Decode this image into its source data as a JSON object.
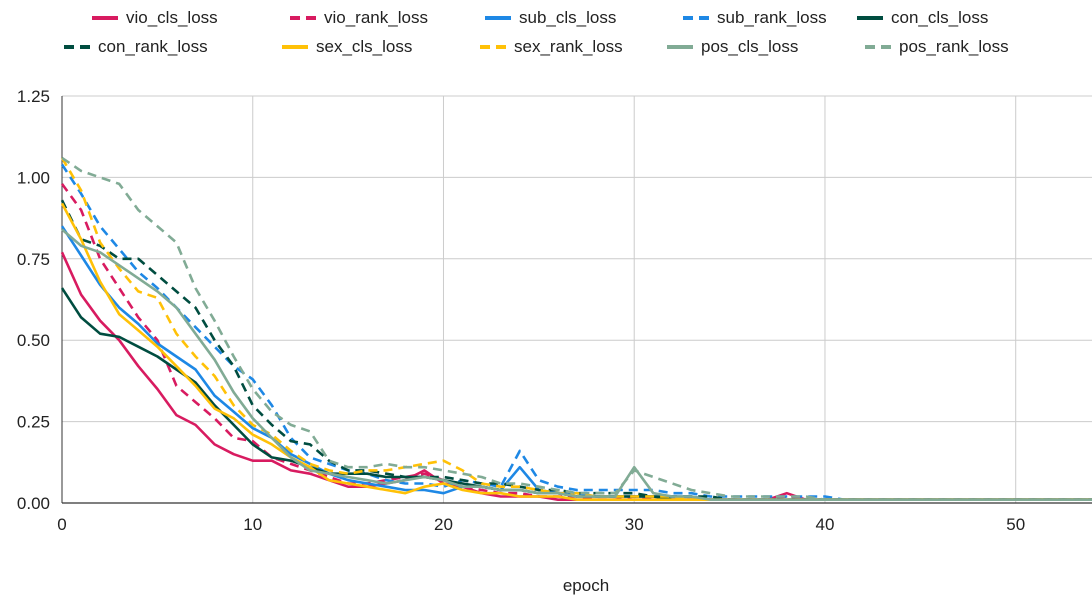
{
  "chart_data": {
    "type": "line",
    "xlabel": "epoch",
    "ylabel": "",
    "xlim": [
      0,
      54
    ],
    "ylim": [
      0,
      1.25
    ],
    "xticks": [
      "0",
      "10",
      "20",
      "30",
      "40",
      "50"
    ],
    "yticks": [
      "0.00",
      "0.25",
      "0.50",
      "0.75",
      "1.00",
      "1.25"
    ],
    "grid": true,
    "legend_position": "top",
    "x": [
      0,
      1,
      2,
      3,
      4,
      5,
      6,
      7,
      8,
      9,
      10,
      11,
      12,
      13,
      14,
      15,
      16,
      17,
      18,
      19,
      20,
      21,
      22,
      23,
      24,
      25,
      26,
      27,
      28,
      29,
      30,
      31,
      32,
      33,
      34,
      35,
      36,
      37,
      38,
      39,
      40,
      41,
      42,
      43,
      44,
      45,
      46,
      47,
      48,
      49,
      50,
      51,
      52,
      53,
      54
    ],
    "series": [
      {
        "name": "vio_cls_loss",
        "color": "#d81b60",
        "dashed": false,
        "values": [
          0.77,
          0.64,
          0.56,
          0.5,
          0.42,
          0.35,
          0.27,
          0.24,
          0.18,
          0.15,
          0.13,
          0.13,
          0.1,
          0.09,
          0.07,
          0.05,
          0.05,
          0.06,
          0.07,
          0.1,
          0.06,
          0.05,
          0.03,
          0.02,
          0.02,
          0.02,
          0.01,
          0.01,
          0.01,
          0.01,
          0.01,
          0.01,
          0.01,
          0.01,
          0.01,
          0.01,
          0.01,
          0.01,
          0.03,
          0.01,
          0.01,
          0.01,
          0.01,
          0.01,
          0.01,
          0.01,
          0.01,
          0.01,
          0.01,
          0.01,
          0.01,
          0.01,
          0.01,
          0.01,
          0.01
        ]
      },
      {
        "name": "vio_rank_loss",
        "color": "#d81b60",
        "dashed": true,
        "values": [
          0.98,
          0.9,
          0.75,
          0.66,
          0.57,
          0.5,
          0.36,
          0.31,
          0.26,
          0.2,
          0.19,
          0.14,
          0.12,
          0.1,
          0.08,
          0.06,
          0.06,
          0.07,
          0.08,
          0.09,
          0.07,
          0.05,
          0.04,
          0.03,
          0.03,
          0.02,
          0.02,
          0.02,
          0.01,
          0.01,
          0.02,
          0.01,
          0.01,
          0.01,
          0.01,
          0.01,
          0.01,
          0.01,
          0.02,
          0.01,
          0.01,
          0.01,
          0.01,
          0.01,
          0.01,
          0.01,
          0.01,
          0.01,
          0.01,
          0.01,
          0.01,
          0.01,
          0.01,
          0.01,
          0.01
        ]
      },
      {
        "name": "sub_cls_loss",
        "color": "#1e88e5",
        "dashed": false,
        "values": [
          0.85,
          0.76,
          0.67,
          0.6,
          0.55,
          0.49,
          0.45,
          0.41,
          0.33,
          0.28,
          0.23,
          0.2,
          0.15,
          0.12,
          0.09,
          0.07,
          0.06,
          0.05,
          0.04,
          0.04,
          0.03,
          0.05,
          0.05,
          0.04,
          0.11,
          0.04,
          0.03,
          0.03,
          0.02,
          0.02,
          0.02,
          0.02,
          0.02,
          0.02,
          0.01,
          0.01,
          0.01,
          0.01,
          0.01,
          0.01,
          0.01,
          0.01,
          0.01,
          0.01,
          0.01,
          0.01,
          0.01,
          0.01,
          0.01,
          0.01,
          0.01,
          0.01,
          0.01,
          0.01,
          0.01
        ]
      },
      {
        "name": "sub_rank_loss",
        "color": "#1e88e5",
        "dashed": true,
        "values": [
          1.04,
          0.95,
          0.85,
          0.78,
          0.71,
          0.66,
          0.6,
          0.54,
          0.48,
          0.42,
          0.38,
          0.3,
          0.2,
          0.14,
          0.12,
          0.1,
          0.09,
          0.07,
          0.06,
          0.06,
          0.05,
          0.07,
          0.06,
          0.05,
          0.16,
          0.07,
          0.05,
          0.04,
          0.04,
          0.04,
          0.04,
          0.04,
          0.03,
          0.03,
          0.02,
          0.02,
          0.02,
          0.02,
          0.02,
          0.02,
          0.02,
          0.01,
          0.01,
          0.01,
          0.01,
          0.01,
          0.01,
          0.01,
          0.01,
          0.01,
          0.01,
          0.01,
          0.01,
          0.01,
          0.01
        ]
      },
      {
        "name": "con_cls_loss",
        "color": "#004d40",
        "dashed": false,
        "values": [
          0.66,
          0.57,
          0.52,
          0.51,
          0.48,
          0.45,
          0.41,
          0.37,
          0.3,
          0.24,
          0.18,
          0.14,
          0.13,
          0.11,
          0.09,
          0.09,
          0.09,
          0.08,
          0.08,
          0.08,
          0.07,
          0.06,
          0.05,
          0.04,
          0.04,
          0.03,
          0.03,
          0.02,
          0.02,
          0.02,
          0.02,
          0.02,
          0.01,
          0.01,
          0.01,
          0.01,
          0.01,
          0.01,
          0.01,
          0.01,
          0.01,
          0.01,
          0.01,
          0.01,
          0.01,
          0.01,
          0.01,
          0.01,
          0.01,
          0.01,
          0.01,
          0.01,
          0.01,
          0.01,
          0.01
        ]
      },
      {
        "name": "con_rank_loss",
        "color": "#004d40",
        "dashed": true,
        "values": [
          0.93,
          0.81,
          0.79,
          0.75,
          0.75,
          0.7,
          0.65,
          0.6,
          0.5,
          0.42,
          0.3,
          0.24,
          0.19,
          0.18,
          0.13,
          0.1,
          0.1,
          0.09,
          0.08,
          0.08,
          0.08,
          0.07,
          0.06,
          0.06,
          0.05,
          0.04,
          0.04,
          0.03,
          0.03,
          0.03,
          0.03,
          0.02,
          0.02,
          0.02,
          0.02,
          0.01,
          0.01,
          0.01,
          0.01,
          0.01,
          0.01,
          0.01,
          0.01,
          0.01,
          0.01,
          0.01,
          0.01,
          0.01,
          0.01,
          0.01,
          0.01,
          0.01,
          0.01,
          0.01,
          0.01
        ]
      },
      {
        "name": "sex_cls_loss",
        "color": "#ffc107",
        "dashed": false,
        "values": [
          0.92,
          0.81,
          0.68,
          0.58,
          0.53,
          0.48,
          0.42,
          0.36,
          0.29,
          0.26,
          0.21,
          0.18,
          0.14,
          0.11,
          0.07,
          0.06,
          0.05,
          0.04,
          0.03,
          0.05,
          0.06,
          0.04,
          0.03,
          0.03,
          0.02,
          0.02,
          0.02,
          0.01,
          0.01,
          0.01,
          0.01,
          0.01,
          0.01,
          0.01,
          0.01,
          0.01,
          0.01,
          0.01,
          0.01,
          0.01,
          0.01,
          0.01,
          0.01,
          0.01,
          0.01,
          0.01,
          0.01,
          0.01,
          0.01,
          0.01,
          0.01,
          0.01,
          0.01,
          0.01,
          0.01
        ]
      },
      {
        "name": "sex_rank_loss",
        "color": "#ffc107",
        "dashed": true,
        "values": [
          1.06,
          0.96,
          0.8,
          0.72,
          0.65,
          0.63,
          0.52,
          0.45,
          0.39,
          0.3,
          0.24,
          0.21,
          0.16,
          0.12,
          0.1,
          0.09,
          0.1,
          0.1,
          0.11,
          0.12,
          0.13,
          0.1,
          0.06,
          0.05,
          0.05,
          0.04,
          0.03,
          0.03,
          0.02,
          0.02,
          0.02,
          0.02,
          0.02,
          0.01,
          0.01,
          0.01,
          0.01,
          0.01,
          0.01,
          0.01,
          0.01,
          0.01,
          0.01,
          0.01,
          0.01,
          0.01,
          0.01,
          0.01,
          0.01,
          0.01,
          0.01,
          0.01,
          0.01,
          0.01,
          0.01
        ]
      },
      {
        "name": "pos_cls_loss",
        "color": "#81ab95",
        "dashed": false,
        "values": [
          0.84,
          0.79,
          0.77,
          0.73,
          0.69,
          0.65,
          0.6,
          0.52,
          0.44,
          0.34,
          0.26,
          0.2,
          0.14,
          0.1,
          0.09,
          0.08,
          0.07,
          0.06,
          0.07,
          0.08,
          0.07,
          0.05,
          0.05,
          0.04,
          0.04,
          0.03,
          0.03,
          0.02,
          0.02,
          0.02,
          0.11,
          0.03,
          0.02,
          0.02,
          0.01,
          0.01,
          0.01,
          0.01,
          0.01,
          0.01,
          0.01,
          0.01,
          0.01,
          0.01,
          0.01,
          0.01,
          0.01,
          0.01,
          0.01,
          0.01,
          0.01,
          0.01,
          0.01,
          0.01,
          0.01
        ]
      },
      {
        "name": "pos_rank_loss",
        "color": "#81ab95",
        "dashed": true,
        "values": [
          1.06,
          1.02,
          1.0,
          0.98,
          0.9,
          0.85,
          0.8,
          0.66,
          0.56,
          0.45,
          0.35,
          0.28,
          0.24,
          0.22,
          0.13,
          0.11,
          0.11,
          0.12,
          0.11,
          0.11,
          0.1,
          0.09,
          0.08,
          0.06,
          0.06,
          0.05,
          0.04,
          0.03,
          0.03,
          0.03,
          0.1,
          0.08,
          0.06,
          0.04,
          0.03,
          0.02,
          0.02,
          0.02,
          0.02,
          0.02,
          0.01,
          0.01,
          0.01,
          0.01,
          0.01,
          0.01,
          0.01,
          0.01,
          0.01,
          0.01,
          0.01,
          0.01,
          0.01,
          0.01,
          0.01
        ]
      }
    ]
  }
}
